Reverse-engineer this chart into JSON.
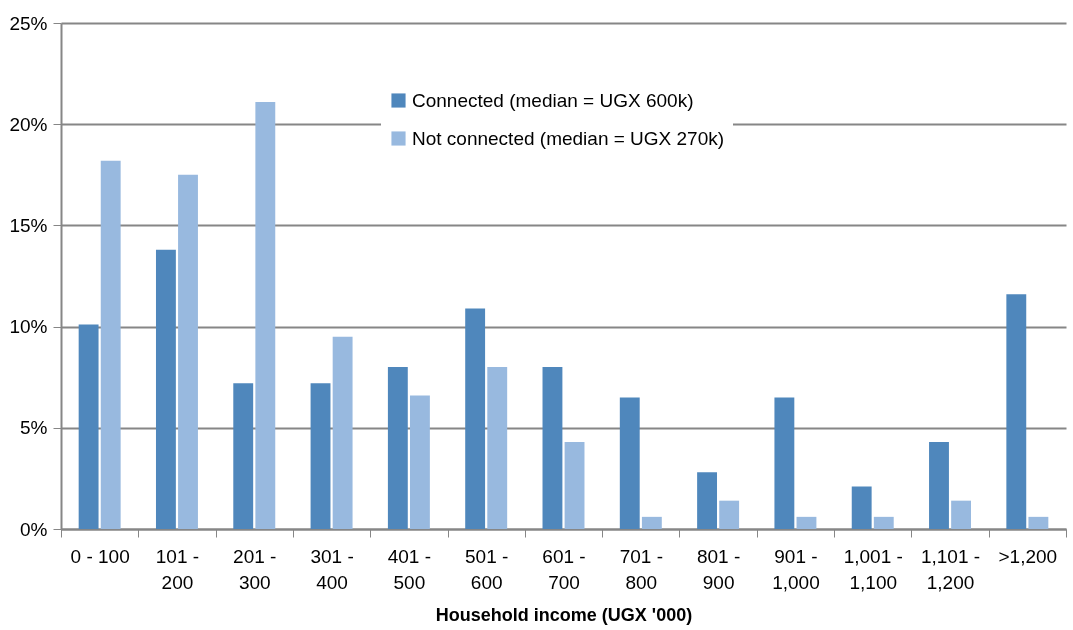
{
  "chart_data": {
    "type": "bar",
    "xlabel": "Household income (UGX '000)",
    "categories": [
      "0 - 100",
      "101 - 200",
      "201 - 300",
      "301 - 400",
      "401 - 500",
      "501 - 600",
      "601 - 700",
      "701 - 800",
      "801 - 900",
      "901 - 1,000",
      "1,001 - 1,100",
      "1,101 - 1,200",
      ">1,200"
    ],
    "series": [
      {
        "name": "Connected (median = UGX 600k)",
        "color": "#4f87bc",
        "values": [
          10.1,
          13.8,
          7.2,
          7.2,
          8.0,
          10.9,
          8.0,
          6.5,
          2.8,
          6.5,
          2.1,
          4.3,
          11.6
        ]
      },
      {
        "name": "Not connected (median = UGX 270k)",
        "color": "#98b9df",
        "values": [
          18.2,
          17.5,
          21.1,
          9.5,
          6.6,
          8.0,
          4.3,
          0.6,
          1.4,
          0.6,
          0.6,
          1.4,
          0.6
        ]
      }
    ],
    "ylim": [
      0,
      25
    ],
    "yticks": [
      {
        "value": 0,
        "label": "0%"
      },
      {
        "value": 5,
        "label": "5%"
      },
      {
        "value": 10,
        "label": "10%"
      },
      {
        "value": 15,
        "label": "15%"
      },
      {
        "value": 20,
        "label": "20%"
      },
      {
        "value": 25,
        "label": "25%"
      }
    ],
    "grid": "y",
    "legend": "top"
  }
}
